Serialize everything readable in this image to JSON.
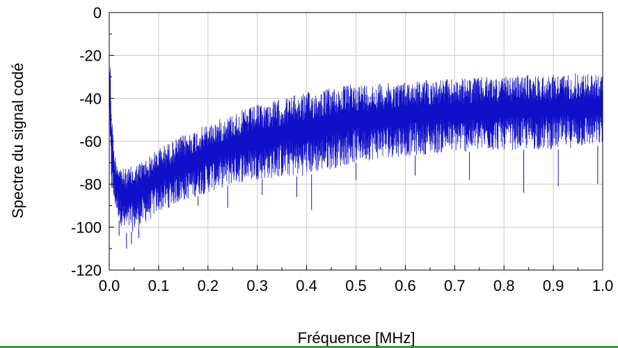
{
  "chart_data": {
    "type": "line",
    "title": "",
    "xlabel": "Fréquence [MHz]",
    "ylabel": "Spectre du signal codé",
    "xlim": [
      0.0,
      1.0
    ],
    "ylim": [
      -120,
      0
    ],
    "x_ticks": [
      "0.0",
      "0.1",
      "0.2",
      "0.3",
      "0.4",
      "0.5",
      "0.6",
      "0.7",
      "0.8",
      "0.9",
      "1.0"
    ],
    "y_ticks": [
      "0",
      "-20",
      "-40",
      "-60",
      "-80",
      "-100",
      "-120"
    ],
    "grid": true,
    "series": [
      {
        "color": "#1010c8",
        "envelope_upper": {
          "x": [
            0.0,
            0.002,
            0.005,
            0.01,
            0.02,
            0.03,
            0.05,
            0.08,
            0.1,
            0.15,
            0.2,
            0.25,
            0.3,
            0.35,
            0.4,
            0.45,
            0.5,
            0.55,
            0.6,
            0.65,
            0.7,
            0.75,
            0.8,
            0.85,
            0.9,
            0.95,
            1.0
          ],
          "y": [
            -18,
            -20,
            -45,
            -65,
            -70,
            -73,
            -71,
            -67,
            -63,
            -57,
            -52,
            -47,
            -43,
            -40,
            -37,
            -35,
            -33,
            -33,
            -32,
            -31,
            -31,
            -30,
            -30,
            -29,
            -29,
            -28,
            -29
          ]
        },
        "envelope_lower": {
          "x": [
            0.0,
            0.002,
            0.005,
            0.01,
            0.02,
            0.03,
            0.05,
            0.08,
            0.1,
            0.15,
            0.2,
            0.25,
            0.3,
            0.35,
            0.4,
            0.45,
            0.5,
            0.55,
            0.6,
            0.65,
            0.7,
            0.75,
            0.8,
            0.85,
            0.9,
            0.95,
            1.0
          ],
          "y": [
            -50,
            -75,
            -85,
            -90,
            -97,
            -103,
            -102,
            -97,
            -93,
            -88,
            -84,
            -80,
            -78,
            -77,
            -76,
            -73,
            -70,
            -68,
            -67,
            -66,
            -65,
            -65,
            -64,
            -64,
            -64,
            -63,
            -62
          ]
        },
        "dips": {
          "x": [
            0.02,
            0.035,
            0.045,
            0.06,
            0.12,
            0.18,
            0.24,
            0.31,
            0.38,
            0.41,
            0.5,
            0.62,
            0.73,
            0.84,
            0.91,
            0.99
          ],
          "y": [
            -104,
            -110,
            -108,
            -105,
            -88,
            -90,
            -91,
            -85,
            -86,
            -92,
            -78,
            -76,
            -78,
            -84,
            -81,
            -80
          ]
        }
      }
    ]
  }
}
